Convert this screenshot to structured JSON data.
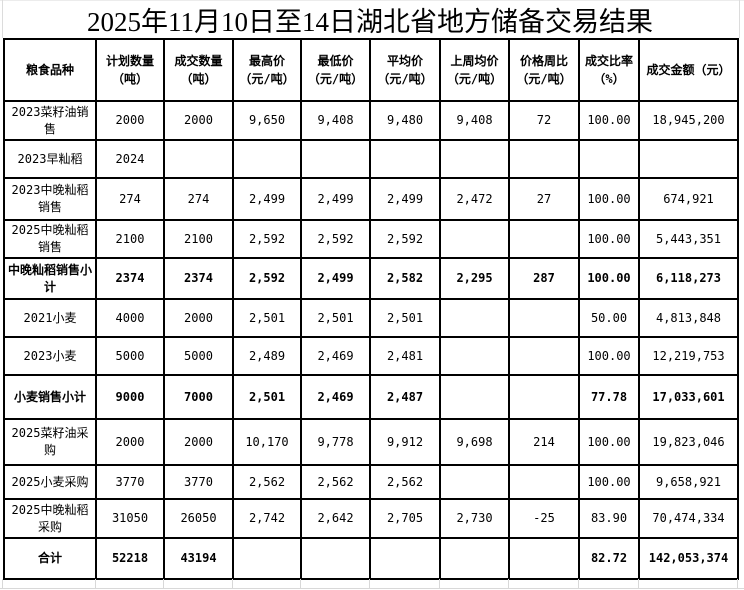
{
  "title": "2025年11月10日至14日湖北省地方储备交易结果",
  "columns": [
    "粮食品种",
    "计划数量\n（吨）",
    "成交数量\n（吨）",
    "最高价\n（元/吨）",
    "最低价\n（元/吨）",
    "平均价\n（元/吨）",
    "上周均价\n（元/吨）",
    "价格周比\n（元/吨）",
    "成交比率\n（%）",
    "成交金额（元）"
  ],
  "rows": [
    {
      "bold": false,
      "cells": [
        "2023菜籽油销售",
        "2000",
        "2000",
        "9,650",
        "9,408",
        "9,480",
        "9,408",
        "72",
        "100.00",
        "18,945,200"
      ]
    },
    {
      "bold": false,
      "cells": [
        "2023早籼稻",
        "2024",
        "",
        "",
        "",
        "",
        "",
        "",
        "",
        ""
      ]
    },
    {
      "bold": false,
      "cells": [
        "2023中晚籼稻销售",
        "274",
        "274",
        "2,499",
        "2,499",
        "2,499",
        "2,472",
        "27",
        "100.00",
        "674,921"
      ]
    },
    {
      "bold": false,
      "cells": [
        "2025中晚籼稻销售",
        "2100",
        "2100",
        "2,592",
        "2,592",
        "2,592",
        "",
        "",
        "100.00",
        "5,443,351"
      ]
    },
    {
      "bold": true,
      "cells": [
        "中晚籼稻销售小计",
        "2374",
        "2374",
        "2,592",
        "2,499",
        "2,582",
        "2,295",
        "287",
        "100.00",
        "6,118,273"
      ]
    },
    {
      "bold": false,
      "cells": [
        "2021小麦",
        "4000",
        "2000",
        "2,501",
        "2,501",
        "2,501",
        "",
        "",
        "50.00",
        "4,813,848"
      ]
    },
    {
      "bold": false,
      "cells": [
        "2023小麦",
        "5000",
        "5000",
        "2,489",
        "2,469",
        "2,481",
        "",
        "",
        "100.00",
        "12,219,753"
      ]
    },
    {
      "bold": true,
      "cells": [
        "小麦销售小计",
        "9000",
        "7000",
        "2,501",
        "2,469",
        "2,487",
        "",
        "",
        "77.78",
        "17,033,601"
      ]
    },
    {
      "bold": false,
      "cells": [
        "2025菜籽油采购",
        "2000",
        "2000",
        "10,170",
        "9,778",
        "9,912",
        "9,698",
        "214",
        "100.00",
        "19,823,046"
      ]
    },
    {
      "bold": false,
      "cells": [
        "2025小麦采购",
        "3770",
        "3770",
        "2,562",
        "2,562",
        "2,562",
        "",
        "",
        "100.00",
        "9,658,921"
      ]
    },
    {
      "bold": false,
      "cells": [
        "2025中晚籼稻采购",
        "31050",
        "26050",
        "2,742",
        "2,642",
        "2,705",
        "2,730",
        "-25",
        "83.90",
        "70,474,334"
      ]
    },
    {
      "bold": true,
      "cells": [
        "合计",
        "52218",
        "43194",
        "",
        "",
        "",
        "",
        "",
        "82.72",
        "142,053,374"
      ]
    }
  ]
}
